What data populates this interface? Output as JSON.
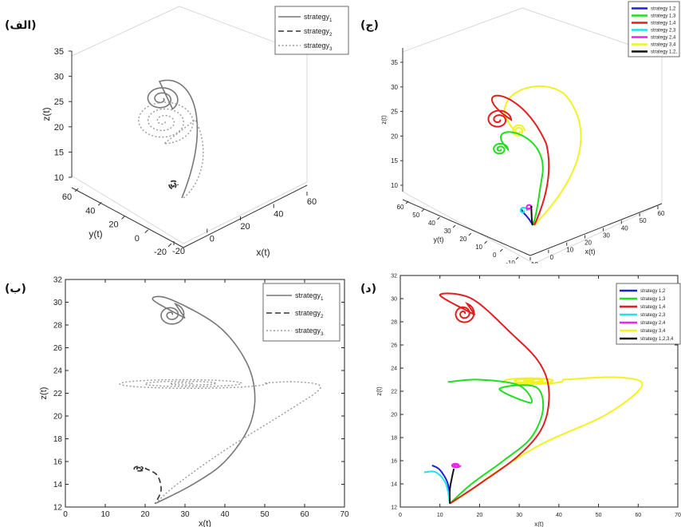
{
  "panels": {
    "top_left_label": "(الف)",
    "top_right_label": "(ج)",
    "bottom_left_label": "(ب)",
    "bottom_right_label": "(د)"
  },
  "chart_data": [
    {
      "type": "line",
      "projection": "3d",
      "xlabel": "x(t)",
      "ylabel": "y(t)",
      "zlabel": "z(t)",
      "z_ticks": [
        "10",
        "15",
        "20",
        "25",
        "30",
        "35"
      ],
      "x_ticks": [
        "-20",
        "0",
        "20",
        "40",
        "60"
      ],
      "y_ticks": [
        "-20",
        "0",
        "20",
        "40",
        "60"
      ],
      "legend": {
        "position": "top-right"
      },
      "series": [
        {
          "name": "strategy1",
          "legend_label": "strategy",
          "legend_sub": "1",
          "style": "solid",
          "color": "#777777"
        },
        {
          "name": "strategy2",
          "legend_label": "strategy",
          "legend_sub": "2",
          "style": "dashed",
          "color": "#333333"
        },
        {
          "name": "strategy3",
          "legend_label": "strategy",
          "legend_sub": "3",
          "style": "dotted",
          "color": "#999999"
        }
      ]
    },
    {
      "type": "line",
      "projection": "3d",
      "xlabel": "x(t)",
      "ylabel": "y(t)",
      "zlabel": "z(t)",
      "z_ticks": [
        "10",
        "15",
        "20",
        "25",
        "30",
        "35"
      ],
      "x_ticks": [
        "-10",
        "0",
        "10",
        "20",
        "30",
        "40",
        "50",
        "60"
      ],
      "y_ticks": [
        "-10",
        "0",
        "10",
        "20",
        "30",
        "40",
        "50",
        "60"
      ],
      "legend": {
        "position": "top-right"
      },
      "series": [
        {
          "name": "strategy 1,2",
          "color": "#1a22d6"
        },
        {
          "name": "strategy 1,3",
          "color": "#22dd22"
        },
        {
          "name": "strategy 1,4",
          "color": "#e02020"
        },
        {
          "name": "strategy 2,3",
          "color": "#22e0e8"
        },
        {
          "name": "strategy 2,4",
          "color": "#ee22ee"
        },
        {
          "name": "strategy 3,4",
          "color": "#f2f222"
        },
        {
          "name": "strategy 1,2,",
          "color": "#111111"
        }
      ]
    },
    {
      "type": "line",
      "xlabel": "x(t)",
      "ylabel": "z(t)",
      "xlim": [
        0,
        70
      ],
      "ylim": [
        12,
        32
      ],
      "x_ticks": [
        "0",
        "10",
        "20",
        "30",
        "40",
        "50",
        "60",
        "70"
      ],
      "y_ticks": [
        "12",
        "14",
        "16",
        "18",
        "20",
        "22",
        "24",
        "26",
        "28",
        "30",
        "32"
      ],
      "grid": false,
      "legend": {
        "position": "top-right"
      },
      "series": [
        {
          "name": "strategy1",
          "legend_label": "strategy",
          "legend_sub": "1",
          "style": "solid",
          "color": "#777777"
        },
        {
          "name": "strategy2",
          "legend_label": "strategy",
          "legend_sub": "2",
          "style": "dashed",
          "color": "#333333"
        },
        {
          "name": "strategy3",
          "legend_label": "strategy",
          "legend_sub": "3",
          "style": "dotted",
          "color": "#999999"
        }
      ]
    },
    {
      "type": "line",
      "xlabel": "x(t)",
      "ylabel": "z(t)",
      "xlim": [
        0,
        70
      ],
      "ylim": [
        12,
        32
      ],
      "x_ticks": [
        "0",
        "10",
        "20",
        "30",
        "40",
        "50",
        "60",
        "70"
      ],
      "y_ticks": [
        "12",
        "14",
        "16",
        "18",
        "20",
        "22",
        "24",
        "26",
        "28",
        "30",
        "32"
      ],
      "grid": false,
      "legend": {
        "position": "top-right"
      },
      "series": [
        {
          "name": "strategy 1,2",
          "color": "#1a22d6"
        },
        {
          "name": "strategy 1,3",
          "color": "#22dd22"
        },
        {
          "name": "strategy 1,4",
          "color": "#e02020"
        },
        {
          "name": "strategy 2,3",
          "color": "#22e0e8"
        },
        {
          "name": "strategy 2,4",
          "color": "#ee22ee"
        },
        {
          "name": "strategy 3,4",
          "color": "#f2f222"
        },
        {
          "name": "strategy 1,2,3,4",
          "color": "#111111"
        }
      ]
    }
  ]
}
